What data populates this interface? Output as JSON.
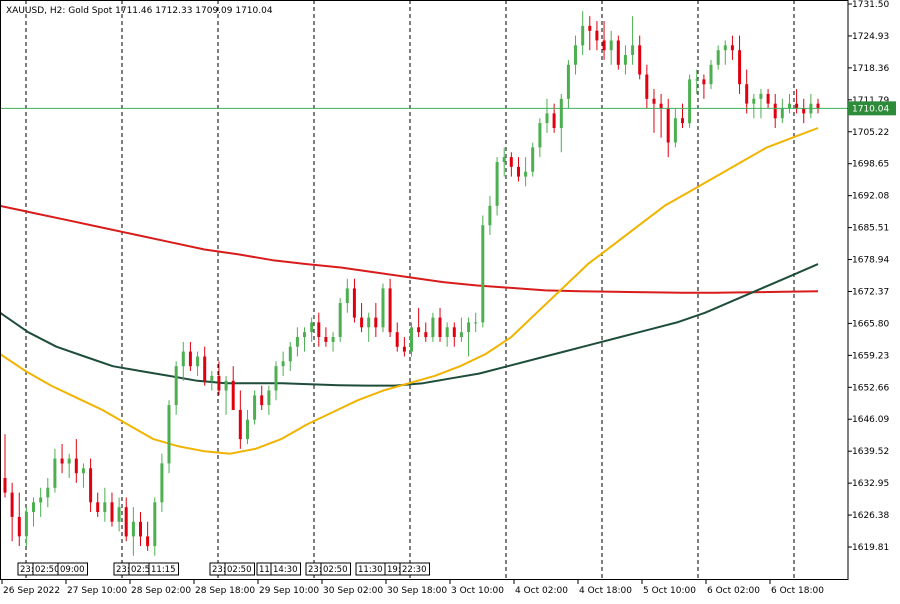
{
  "header": {
    "symbol": "XAUUSD",
    "timeframe": "H2",
    "name": "Gold Spot",
    "open": "1711.46",
    "high": "1712.33",
    "low": "1709.09",
    "close": "1710.04"
  },
  "price_axis": {
    "ticks": [
      "1731.50",
      "1724.93",
      "1718.36",
      "1711.79",
      "1705.22",
      "1698.65",
      "1692.08",
      "1685.51",
      "1678.94",
      "1672.37",
      "1665.80",
      "1659.23",
      "1652.66",
      "1646.09",
      "1639.52",
      "1632.95",
      "1626.38",
      "1619.81"
    ]
  },
  "time_axis": {
    "labels": [
      "26 Sep 2022",
      "27 Sep 10:00",
      "28 Sep 02:00",
      "28 Sep 18:00",
      "29 Sep 10:00",
      "30 Sep 02:00",
      "30 Sep 18:00",
      "3 Oct 10:00",
      "4 Oct 02:00",
      "4 Oct 18:00",
      "5 Oct 10:00",
      "6 Oct 02:00",
      "6 Oct 18:00"
    ]
  },
  "session_labels": [
    "23:",
    "02:50",
    "09:00",
    "23:",
    "02:50",
    "11:15",
    "23:",
    "02:50",
    "11:",
    "14:30",
    "23:",
    "02:50",
    "11:30",
    "19:",
    "22:30"
  ],
  "colors": {
    "bull": "#4caf50",
    "bear": "#e0000f",
    "ma_fast": "#f0b400",
    "ma_mid": "#1e4d3a",
    "ma_slow": "#d81c1c",
    "bid_line": "#3fae5a",
    "price_label_bg": "#2e8b3a",
    "separator": "#000000"
  },
  "chart_data": {
    "type": "candlestick",
    "title": "XAUUSD, H2: Gold Spot",
    "ylim": [
      1616.5,
      1731.5
    ],
    "current_price": 1710.04,
    "candles": [
      {
        "o": 1634,
        "h": 1643,
        "l": 1630,
        "c": 1631
      },
      {
        "o": 1631,
        "h": 1633,
        "l": 1621,
        "c": 1626
      },
      {
        "o": 1626,
        "h": 1631,
        "l": 1620,
        "c": 1622
      },
      {
        "o": 1622,
        "h": 1628,
        "l": 1620,
        "c": 1627
      },
      {
        "o": 1627,
        "h": 1630,
        "l": 1624,
        "c": 1629
      },
      {
        "o": 1629,
        "h": 1632,
        "l": 1626,
        "c": 1630
      },
      {
        "o": 1630,
        "h": 1634,
        "l": 1628,
        "c": 1632
      },
      {
        "o": 1632,
        "h": 1640,
        "l": 1631,
        "c": 1638
      },
      {
        "o": 1638,
        "h": 1641,
        "l": 1635,
        "c": 1637
      },
      {
        "o": 1637,
        "h": 1639,
        "l": 1634,
        "c": 1638
      },
      {
        "o": 1638,
        "h": 1642,
        "l": 1633,
        "c": 1635
      },
      {
        "o": 1635,
        "h": 1637,
        "l": 1632,
        "c": 1636
      },
      {
        "o": 1636,
        "h": 1638,
        "l": 1627,
        "c": 1629
      },
      {
        "o": 1629,
        "h": 1631,
        "l": 1626,
        "c": 1627
      },
      {
        "o": 1627,
        "h": 1632,
        "l": 1625,
        "c": 1629
      },
      {
        "o": 1629,
        "h": 1631,
        "l": 1624,
        "c": 1625
      },
      {
        "o": 1625,
        "h": 1630,
        "l": 1623,
        "c": 1628
      },
      {
        "o": 1628,
        "h": 1630,
        "l": 1621,
        "c": 1622
      },
      {
        "o": 1622,
        "h": 1628,
        "l": 1618,
        "c": 1625
      },
      {
        "o": 1625,
        "h": 1627,
        "l": 1620,
        "c": 1622
      },
      {
        "o": 1622,
        "h": 1625,
        "l": 1619,
        "c": 1620
      },
      {
        "o": 1620,
        "h": 1630,
        "l": 1618,
        "c": 1629
      },
      {
        "o": 1629,
        "h": 1639,
        "l": 1627,
        "c": 1637
      },
      {
        "o": 1637,
        "h": 1650,
        "l": 1635,
        "c": 1649
      },
      {
        "o": 1649,
        "h": 1658,
        "l": 1647,
        "c": 1657
      },
      {
        "o": 1657,
        "h": 1662,
        "l": 1654,
        "c": 1660
      },
      {
        "o": 1660,
        "h": 1662,
        "l": 1656,
        "c": 1657
      },
      {
        "o": 1657,
        "h": 1660,
        "l": 1655,
        "c": 1659
      },
      {
        "o": 1659,
        "h": 1661,
        "l": 1653,
        "c": 1654
      },
      {
        "o": 1654,
        "h": 1656,
        "l": 1652,
        "c": 1655
      },
      {
        "o": 1655,
        "h": 1658,
        "l": 1651,
        "c": 1652
      },
      {
        "o": 1652,
        "h": 1655,
        "l": 1647,
        "c": 1654
      },
      {
        "o": 1654,
        "h": 1657,
        "l": 1648,
        "c": 1648
      },
      {
        "o": 1648,
        "h": 1652,
        "l": 1640,
        "c": 1642
      },
      {
        "o": 1642,
        "h": 1648,
        "l": 1641,
        "c": 1646
      },
      {
        "o": 1646,
        "h": 1652,
        "l": 1645,
        "c": 1651
      },
      {
        "o": 1651,
        "h": 1653,
        "l": 1648,
        "c": 1649
      },
      {
        "o": 1649,
        "h": 1653,
        "l": 1647,
        "c": 1652
      },
      {
        "o": 1652,
        "h": 1658,
        "l": 1650,
        "c": 1657
      },
      {
        "o": 1657,
        "h": 1660,
        "l": 1655,
        "c": 1658
      },
      {
        "o": 1658,
        "h": 1662,
        "l": 1656,
        "c": 1661
      },
      {
        "o": 1661,
        "h": 1665,
        "l": 1659,
        "c": 1663
      },
      {
        "o": 1663,
        "h": 1665,
        "l": 1660,
        "c": 1664
      },
      {
        "o": 1664,
        "h": 1667,
        "l": 1662,
        "c": 1666
      },
      {
        "o": 1666,
        "h": 1668,
        "l": 1661,
        "c": 1663
      },
      {
        "o": 1663,
        "h": 1665,
        "l": 1661,
        "c": 1662
      },
      {
        "o": 1662,
        "h": 1664,
        "l": 1660,
        "c": 1663
      },
      {
        "o": 1663,
        "h": 1671,
        "l": 1662,
        "c": 1670
      },
      {
        "o": 1670,
        "h": 1675,
        "l": 1668,
        "c": 1673
      },
      {
        "o": 1673,
        "h": 1675,
        "l": 1666,
        "c": 1667
      },
      {
        "o": 1667,
        "h": 1670,
        "l": 1664,
        "c": 1665
      },
      {
        "o": 1665,
        "h": 1668,
        "l": 1662,
        "c": 1667
      },
      {
        "o": 1667,
        "h": 1670,
        "l": 1663,
        "c": 1665
      },
      {
        "o": 1665,
        "h": 1674,
        "l": 1664,
        "c": 1673
      },
      {
        "o": 1673,
        "h": 1675,
        "l": 1663,
        "c": 1664
      },
      {
        "o": 1664,
        "h": 1666,
        "l": 1660,
        "c": 1661
      },
      {
        "o": 1661,
        "h": 1663,
        "l": 1659,
        "c": 1660
      },
      {
        "o": 1660,
        "h": 1666,
        "l": 1659,
        "c": 1665
      },
      {
        "o": 1665,
        "h": 1669,
        "l": 1663,
        "c": 1664
      },
      {
        "o": 1664,
        "h": 1666,
        "l": 1662,
        "c": 1663
      },
      {
        "o": 1663,
        "h": 1668,
        "l": 1662,
        "c": 1667
      },
      {
        "o": 1667,
        "h": 1669,
        "l": 1662,
        "c": 1663
      },
      {
        "o": 1663,
        "h": 1666,
        "l": 1661,
        "c": 1665
      },
      {
        "o": 1665,
        "h": 1666,
        "l": 1661,
        "c": 1663
      },
      {
        "o": 1663,
        "h": 1667,
        "l": 1662,
        "c": 1664
      },
      {
        "o": 1664,
        "h": 1667,
        "l": 1659,
        "c": 1666
      },
      {
        "o": 1666,
        "h": 1668,
        "l": 1664,
        "c": 1666
      },
      {
        "o": 1666,
        "h": 1688,
        "l": 1665,
        "c": 1686
      },
      {
        "o": 1686,
        "h": 1692,
        "l": 1684,
        "c": 1690
      },
      {
        "o": 1690,
        "h": 1700,
        "l": 1688,
        "c": 1699
      },
      {
        "o": 1699,
        "h": 1702,
        "l": 1696,
        "c": 1700
      },
      {
        "o": 1700,
        "h": 1701,
        "l": 1696,
        "c": 1698
      },
      {
        "o": 1698,
        "h": 1700,
        "l": 1695,
        "c": 1696
      },
      {
        "o": 1696,
        "h": 1700,
        "l": 1694,
        "c": 1697
      },
      {
        "o": 1697,
        "h": 1703,
        "l": 1696,
        "c": 1702
      },
      {
        "o": 1702,
        "h": 1708,
        "l": 1700,
        "c": 1707
      },
      {
        "o": 1707,
        "h": 1712,
        "l": 1705,
        "c": 1709
      },
      {
        "o": 1709,
        "h": 1711,
        "l": 1705,
        "c": 1706
      },
      {
        "o": 1706,
        "h": 1713,
        "l": 1701,
        "c": 1712
      },
      {
        "o": 1712,
        "h": 1720,
        "l": 1710,
        "c": 1719
      },
      {
        "o": 1719,
        "h": 1725,
        "l": 1717,
        "c": 1723
      },
      {
        "o": 1723,
        "h": 1730,
        "l": 1721,
        "c": 1727
      },
      {
        "o": 1727,
        "h": 1729,
        "l": 1722,
        "c": 1726
      },
      {
        "o": 1726,
        "h": 1728,
        "l": 1722,
        "c": 1724
      },
      {
        "o": 1724,
        "h": 1728,
        "l": 1720,
        "c": 1722
      },
      {
        "o": 1722,
        "h": 1726,
        "l": 1719,
        "c": 1724
      },
      {
        "o": 1724,
        "h": 1725,
        "l": 1718,
        "c": 1719
      },
      {
        "o": 1719,
        "h": 1723,
        "l": 1717,
        "c": 1721
      },
      {
        "o": 1721,
        "h": 1729,
        "l": 1719,
        "c": 1723
      },
      {
        "o": 1723,
        "h": 1725,
        "l": 1716,
        "c": 1717
      },
      {
        "o": 1717,
        "h": 1719,
        "l": 1710,
        "c": 1712
      },
      {
        "o": 1712,
        "h": 1714,
        "l": 1705,
        "c": 1711
      },
      {
        "o": 1711,
        "h": 1713,
        "l": 1704,
        "c": 1710
      },
      {
        "o": 1710,
        "h": 1712,
        "l": 1700,
        "c": 1703
      },
      {
        "o": 1703,
        "h": 1710,
        "l": 1702,
        "c": 1708
      },
      {
        "o": 1708,
        "h": 1711,
        "l": 1706,
        "c": 1707
      },
      {
        "o": 1707,
        "h": 1717,
        "l": 1706,
        "c": 1716
      },
      {
        "o": 1716,
        "h": 1718,
        "l": 1713,
        "c": 1716
      },
      {
        "o": 1716,
        "h": 1717,
        "l": 1712,
        "c": 1715
      },
      {
        "o": 1715,
        "h": 1720,
        "l": 1714,
        "c": 1719
      },
      {
        "o": 1719,
        "h": 1723,
        "l": 1718,
        "c": 1722
      },
      {
        "o": 1722,
        "h": 1724,
        "l": 1719,
        "c": 1723
      },
      {
        "o": 1723,
        "h": 1725,
        "l": 1720,
        "c": 1722
      },
      {
        "o": 1722,
        "h": 1725,
        "l": 1713,
        "c": 1715
      },
      {
        "o": 1715,
        "h": 1718,
        "l": 1709,
        "c": 1711
      },
      {
        "o": 1711,
        "h": 1713,
        "l": 1708,
        "c": 1712
      },
      {
        "o": 1712,
        "h": 1714,
        "l": 1708,
        "c": 1713
      },
      {
        "o": 1713,
        "h": 1714,
        "l": 1710,
        "c": 1711
      },
      {
        "o": 1711,
        "h": 1713,
        "l": 1706,
        "c": 1708
      },
      {
        "o": 1708,
        "h": 1712,
        "l": 1707,
        "c": 1710
      },
      {
        "o": 1710,
        "h": 1713,
        "l": 1709,
        "c": 1711
      },
      {
        "o": 1711,
        "h": 1714,
        "l": 1709,
        "c": 1710
      },
      {
        "o": 1710,
        "h": 1712,
        "l": 1707,
        "c": 1709
      },
      {
        "o": 1709,
        "h": 1713,
        "l": 1708,
        "c": 1711
      },
      {
        "o": 1711,
        "h": 1712,
        "l": 1709,
        "c": 1710.04
      }
    ],
    "ma_fast": [
      1659.5,
      1656,
      1653,
      1650.5,
      1648,
      1645,
      1642,
      1640.5,
      1639.5,
      1639,
      1640,
      1642,
      1645,
      1647.5,
      1650,
      1652,
      1653.5,
      1655,
      1657,
      1659.5,
      1663,
      1668,
      1673,
      1678,
      1682,
      1686,
      1690,
      1693,
      1696,
      1699,
      1702,
      1704,
      1706
    ],
    "ma_mid": [
      1668,
      1664,
      1661,
      1659,
      1657,
      1656,
      1655,
      1654,
      1653.5,
      1653.5,
      1653.5,
      1653.3,
      1653.1,
      1653,
      1653,
      1653.5,
      1654.5,
      1655.5,
      1657,
      1658.5,
      1660,
      1661.5,
      1663,
      1664.5,
      1666,
      1668,
      1670.5,
      1673,
      1675.5,
      1678
    ],
    "ma_slow": [
      1690,
      1688.5,
      1687,
      1685.5,
      1684,
      1682.5,
      1681,
      1680,
      1678.8,
      1678,
      1677.3,
      1676.3,
      1675.3,
      1674.3,
      1673.6,
      1673.1,
      1672.6,
      1672.4,
      1672.3,
      1672.2,
      1672.1,
      1672.1,
      1672.2,
      1672.3,
      1672.4
    ]
  }
}
